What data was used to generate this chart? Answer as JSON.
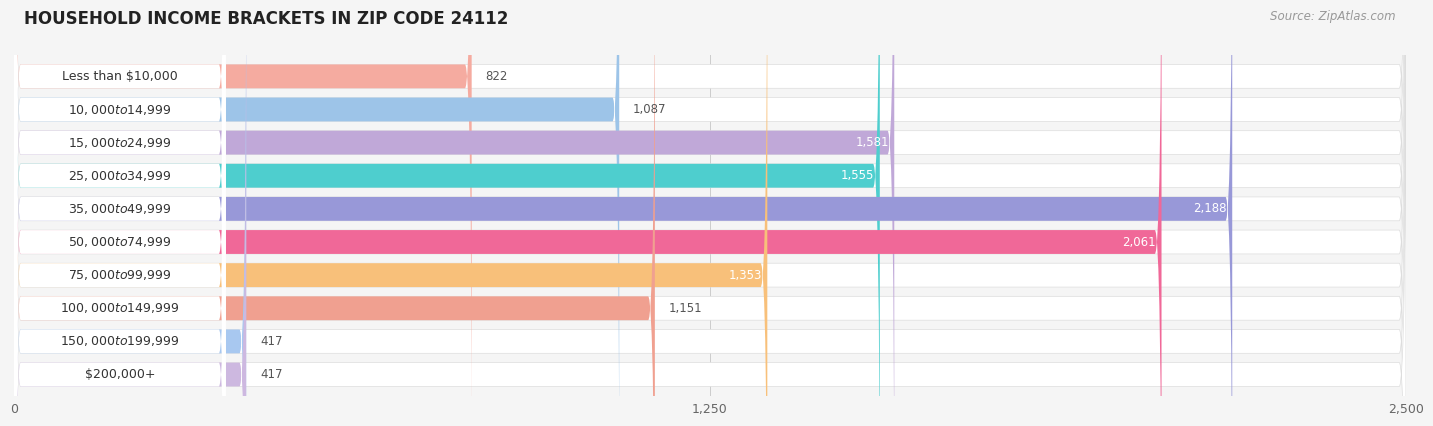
{
  "title": "HOUSEHOLD INCOME BRACKETS IN ZIP CODE 24112",
  "source": "Source: ZipAtlas.com",
  "categories": [
    "Less than $10,000",
    "$10,000 to $14,999",
    "$15,000 to $24,999",
    "$25,000 to $34,999",
    "$35,000 to $49,999",
    "$50,000 to $74,999",
    "$75,000 to $99,999",
    "$100,000 to $149,999",
    "$150,000 to $199,999",
    "$200,000+"
  ],
  "values": [
    822,
    1087,
    1581,
    1555,
    2188,
    2061,
    1353,
    1151,
    417,
    417
  ],
  "bar_colors": [
    "#f5aba0",
    "#9dc4e8",
    "#c0a8d8",
    "#4ecece",
    "#9898d8",
    "#f06898",
    "#f8c07a",
    "#f0a090",
    "#a8c8f0",
    "#cdb8e0"
  ],
  "xlim": [
    0,
    2500
  ],
  "xticks": [
    0,
    1250,
    2500
  ],
  "background_color": "#f5f5f5",
  "bar_bg_color": "#ffffff",
  "label_inside_threshold": 1250,
  "title_fontsize": 12,
  "source_fontsize": 8.5,
  "tick_fontsize": 9,
  "bar_label_fontsize": 8.5,
  "category_fontsize": 9
}
